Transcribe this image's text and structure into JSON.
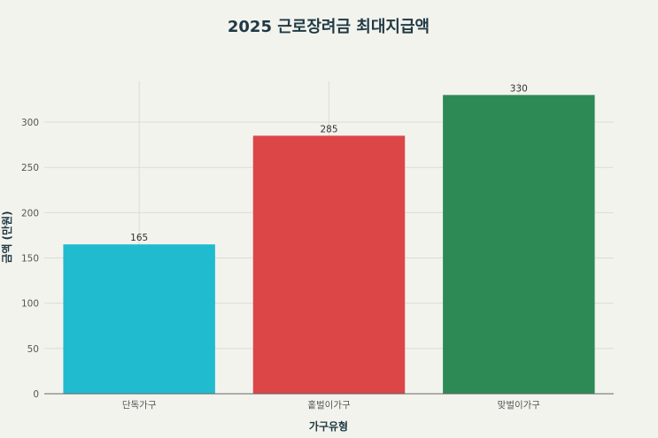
{
  "chart_data": {
    "type": "bar",
    "title": "2025 근로장려금 최대지급액",
    "xlabel": "가구유형",
    "ylabel": "금액 (만원)",
    "categories": [
      "단독가구",
      "홑벌이가구",
      "맞벌이가구"
    ],
    "values": [
      165,
      285,
      330
    ],
    "data_labels": [
      "165",
      "285",
      "330"
    ],
    "colors": [
      "#21bbcf",
      "#dd4646",
      "#2e8a55"
    ],
    "yticks": [
      0,
      50,
      100,
      150,
      200,
      250,
      300
    ],
    "ylim": [
      0,
      345
    ],
    "grid": true,
    "legend": "none"
  }
}
